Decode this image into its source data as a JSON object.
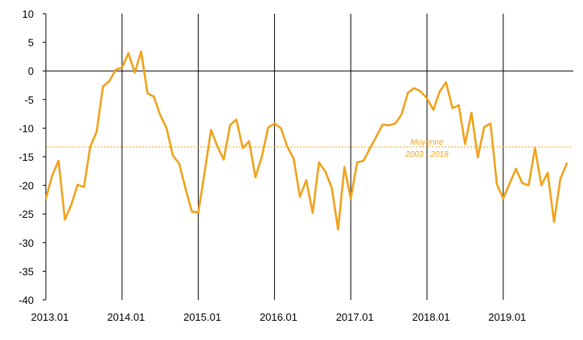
{
  "chart_data": {
    "type": "line",
    "title": "",
    "xlabel": "",
    "ylabel": "",
    "ylim": [
      -40,
      10
    ],
    "yticks": [
      10,
      5,
      0,
      -5,
      -10,
      -15,
      -20,
      -25,
      -30,
      -35,
      -40
    ],
    "xtick_labels": [
      "2013.01",
      "2014.01",
      "2015.01",
      "2016.01",
      "2017.01",
      "2018.01",
      "2019.01"
    ],
    "grid": "vertical lines at each year",
    "legend": "none",
    "series": [
      {
        "color": "#F0A21C",
        "start": "2013.01",
        "frequency": "monthly",
        "values": [
          -22.3,
          -18.3,
          -15.7,
          -26.0,
          -23.4,
          -19.9,
          -20.3,
          -13.2,
          -10.6,
          -2.7,
          -1.8,
          0.2,
          0.6,
          3.1,
          -0.3,
          3.4,
          -3.9,
          -4.5,
          -7.7,
          -10.0,
          -14.8,
          -16.2,
          -20.6,
          -24.6,
          -24.7,
          -17.7,
          -10.3,
          -13.2,
          -15.5,
          -9.5,
          -8.5,
          -13.5,
          -12.3,
          -18.6,
          -15.0,
          -9.9,
          -9.2,
          -10.0,
          -13.2,
          -15.3,
          -22.0,
          -19.1,
          -24.8,
          -16.0,
          -17.6,
          -20.4,
          -27.7,
          -16.8,
          -22.3,
          -16.0,
          -15.7,
          -13.6,
          -11.5,
          -9.4,
          -9.5,
          -9.2,
          -7.6,
          -3.8,
          -3.0,
          -3.6,
          -4.8,
          -6.8,
          -3.6,
          -2.0,
          -6.5,
          -6.0,
          -12.8,
          -7.3,
          -15.1,
          -9.8,
          -9.2,
          -19.8,
          -22.3,
          -19.7,
          -17.1,
          -19.6,
          -20.0,
          -13.5,
          -20.0,
          -17.8,
          -26.4,
          -18.8,
          -16.2
        ]
      }
    ],
    "reference_line": {
      "value": -13.3,
      "color": "#F0A21C",
      "label_line1": "Moyenne",
      "label_line2": "2003 - 2018"
    }
  }
}
